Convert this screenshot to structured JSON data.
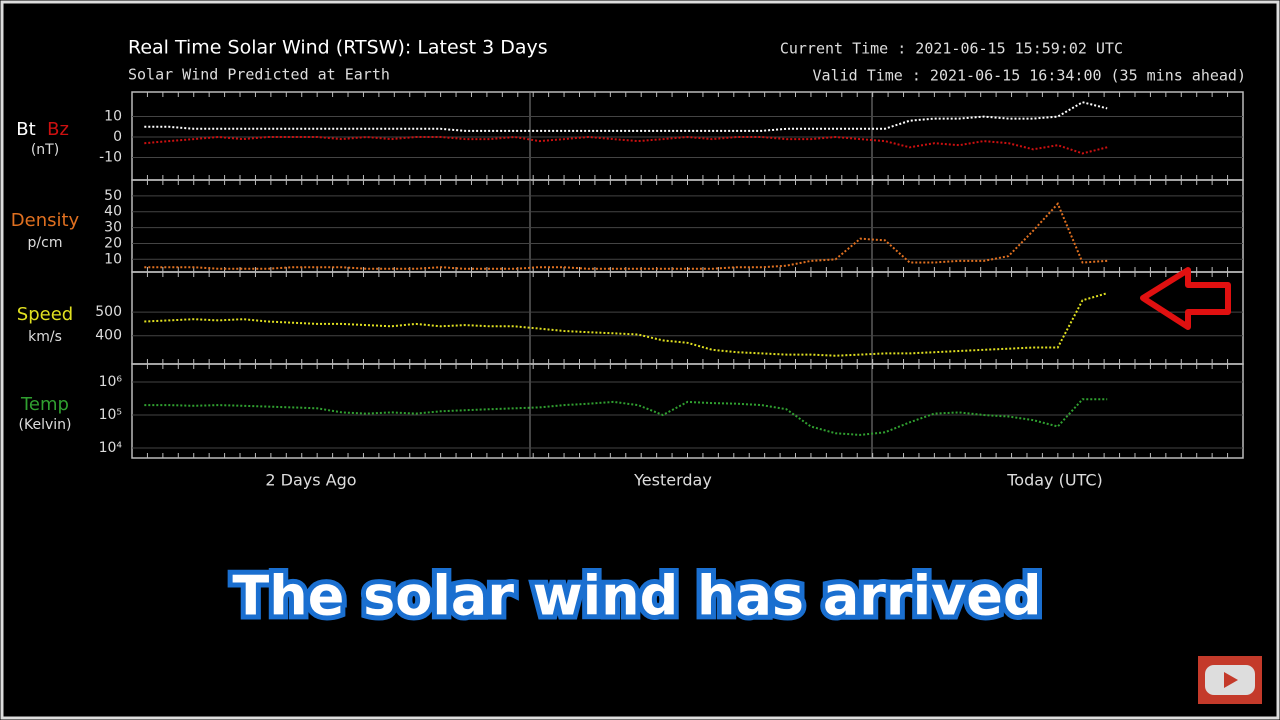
{
  "header": {
    "title": "Real Time Solar Wind (RTSW): Latest 3 Days",
    "subtitle": "Solar Wind Predicted at Earth",
    "current_time": "Current Time : 2021-06-15 15:59:02 UTC",
    "valid_time": "Valid Time : 2021-06-15 16:34:00 (35 mins ahead)"
  },
  "x_labels": [
    "2 Days Ago",
    "Yesterday",
    "Today (UTC)"
  ],
  "caption": "The solar wind has arrived",
  "chart_data": [
    {
      "type": "line",
      "unit": "(nT)",
      "ylim": [
        -21,
        22
      ],
      "yticks": [
        10,
        0,
        -10
      ],
      "series": [
        {
          "name": "Bt",
          "color": "#ffffff",
          "values": [
            5,
            5,
            4,
            4,
            4,
            4,
            4,
            4,
            4,
            4,
            4,
            4,
            4,
            3,
            3,
            3,
            3,
            3,
            3,
            3,
            3,
            3,
            3,
            3,
            3,
            3,
            4,
            4,
            4,
            4,
            4,
            8,
            9,
            9,
            10,
            9,
            9,
            10,
            17,
            14,
            null,
            null,
            null,
            null,
            null
          ]
        },
        {
          "name": "Bz",
          "color": "#cc1010",
          "values": [
            -3,
            -2,
            -1,
            0,
            -1,
            0,
            0,
            0,
            -1,
            0,
            -1,
            0,
            0,
            -1,
            -1,
            0,
            -2,
            -1,
            0,
            -1,
            -2,
            -1,
            0,
            -1,
            0,
            0,
            -1,
            -1,
            0,
            -1,
            -2,
            -5,
            -3,
            -4,
            -2,
            -3,
            -6,
            -4,
            -8,
            -5,
            null,
            null,
            null,
            null,
            null
          ]
        }
      ]
    },
    {
      "type": "line",
      "unit": "p/cm",
      "ylim": [
        2,
        60
      ],
      "yticks": [
        10,
        20,
        30,
        40,
        50
      ],
      "series": [
        {
          "name": "Density",
          "color": "#e07020",
          "values": [
            5,
            5,
            5,
            4,
            4,
            4,
            5,
            5,
            5,
            4,
            4,
            4,
            5,
            4,
            4,
            4,
            5,
            5,
            4,
            4,
            4,
            4,
            4,
            4,
            5,
            5,
            6,
            9,
            10,
            23,
            22,
            8,
            8,
            9,
            9,
            12,
            28,
            45,
            8,
            9,
            null,
            null,
            null,
            null,
            null
          ]
        }
      ]
    },
    {
      "type": "line",
      "unit": "km/s",
      "ylim": [
        280,
        670
      ],
      "yticks": [
        400,
        500
      ],
      "series": [
        {
          "name": "Speed",
          "color": "#e0e020",
          "values": [
            460,
            465,
            470,
            465,
            470,
            460,
            455,
            450,
            450,
            445,
            440,
            450,
            440,
            445,
            440,
            440,
            430,
            420,
            415,
            410,
            405,
            380,
            370,
            340,
            330,
            325,
            320,
            320,
            315,
            320,
            325,
            325,
            330,
            335,
            340,
            345,
            350,
            350,
            550,
            580,
            null,
            null,
            null,
            null,
            null
          ]
        }
      ]
    },
    {
      "type": "line",
      "log": true,
      "unit": "(Kelvin)",
      "ylim": [
        5000,
        3500000
      ],
      "yticks": [
        {
          "value": 1000000,
          "label": "10⁶"
        },
        {
          "value": 100000,
          "label": "10⁵"
        },
        {
          "value": 10000,
          "label": "10⁴"
        }
      ],
      "series": [
        {
          "name": "Temp",
          "color": "#30a030",
          "values": [
            200000,
            200000,
            190000,
            200000,
            190000,
            180000,
            170000,
            160000,
            120000,
            110000,
            120000,
            110000,
            130000,
            140000,
            150000,
            160000,
            170000,
            200000,
            220000,
            250000,
            200000,
            100000,
            250000,
            230000,
            220000,
            200000,
            150000,
            45000,
            28000,
            25000,
            30000,
            60000,
            110000,
            120000,
            100000,
            90000,
            70000,
            45000,
            300000,
            300000,
            null,
            null,
            null,
            null,
            null
          ]
        }
      ]
    }
  ]
}
